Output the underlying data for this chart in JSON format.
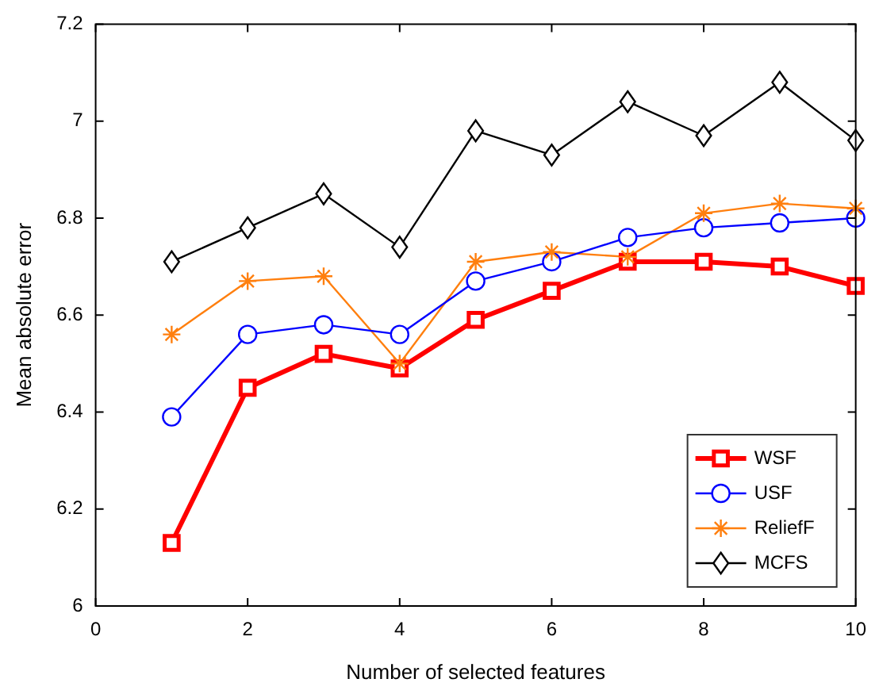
{
  "chart_data": {
    "type": "line",
    "xlabel": "Number of selected features",
    "ylabel": "Mean absolute error",
    "x": [
      1,
      2,
      3,
      4,
      5,
      6,
      7,
      8,
      9,
      10
    ],
    "series": [
      {
        "name": "WSF",
        "color": "#ff0000",
        "marker": "square",
        "values": [
          6.13,
          6.45,
          6.52,
          6.49,
          6.59,
          6.65,
          6.71,
          6.71,
          6.7,
          6.66
        ]
      },
      {
        "name": "USF",
        "color": "#0000ff",
        "marker": "circle",
        "values": [
          6.39,
          6.56,
          6.58,
          6.56,
          6.67,
          6.71,
          6.76,
          6.78,
          6.79,
          6.8
        ]
      },
      {
        "name": "ReliefF",
        "color": "#ff7f0e",
        "marker": "cross",
        "values": [
          6.56,
          6.67,
          6.68,
          6.5,
          6.71,
          6.73,
          6.72,
          6.81,
          6.83,
          6.82
        ]
      },
      {
        "name": "MCFS",
        "color": "#000000",
        "marker": "diamond",
        "values": [
          6.71,
          6.78,
          6.85,
          6.74,
          6.98,
          6.93,
          7.04,
          6.97,
          7.08,
          6.96
        ]
      }
    ],
    "xlim": [
      0,
      10
    ],
    "xticks": [
      0,
      2,
      4,
      6,
      8,
      10
    ],
    "ylim": [
      6,
      7.2
    ],
    "yticks": [
      6,
      6.2,
      6.4,
      6.6,
      6.8,
      7,
      7.2
    ],
    "grid": false,
    "legend": "bottom right",
    "line_style": "solid"
  }
}
